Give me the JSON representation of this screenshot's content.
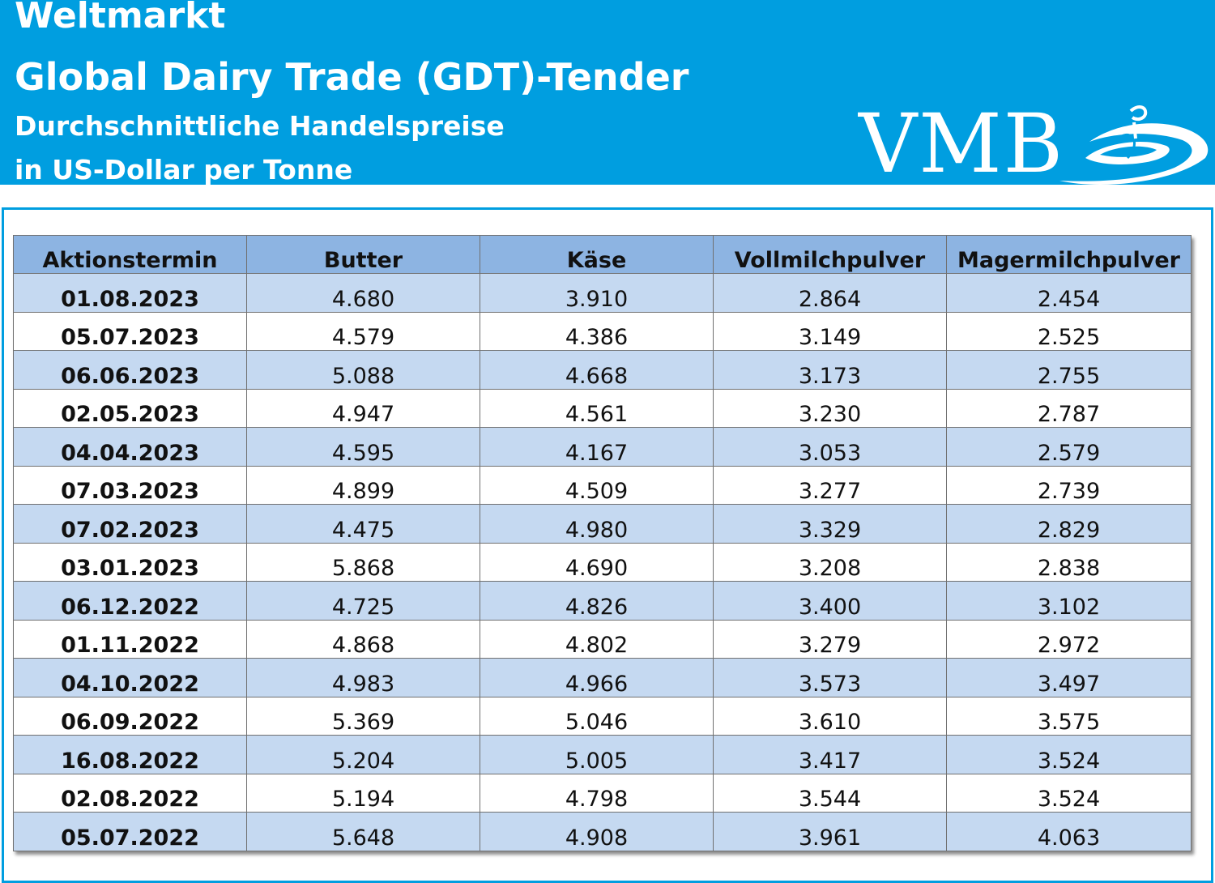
{
  "header": {
    "line1": "Weltmarkt",
    "line2": "Global Dairy Trade (GDT)-Tender",
    "line3": "Durchschnittliche Handelspreise",
    "line4": "in US-Dollar per Tonne",
    "logo_text": "VMB",
    "background_color": "#009ee0"
  },
  "table": {
    "columns": [
      "Aktionstermin",
      "Butter",
      "Käse",
      "Vollmilchpulver",
      "Magermilchpulver"
    ],
    "rows": [
      [
        "01.08.2023",
        "4.680",
        "3.910",
        "2.864",
        "2.454"
      ],
      [
        "05.07.2023",
        "4.579",
        "4.386",
        "3.149",
        "2.525"
      ],
      [
        "06.06.2023",
        "5.088",
        "4.668",
        "3.173",
        "2.755"
      ],
      [
        "02.05.2023",
        "4.947",
        "4.561",
        "3.230",
        "2.787"
      ],
      [
        "04.04.2023",
        "4.595",
        "4.167",
        "3.053",
        "2.579"
      ],
      [
        "07.03.2023",
        "4.899",
        "4.509",
        "3.277",
        "2.739"
      ],
      [
        "07.02.2023",
        "4.475",
        "4.980",
        "3.329",
        "2.829"
      ],
      [
        "03.01.2023",
        "5.868",
        "4.690",
        "3.208",
        "2.838"
      ],
      [
        "06.12.2022",
        "4.725",
        "4.826",
        "3.400",
        "3.102"
      ],
      [
        "01.11.2022",
        "4.868",
        "4.802",
        "3.279",
        "2.972"
      ],
      [
        "04.10.2022",
        "4.983",
        "4.966",
        "3.573",
        "3.497"
      ],
      [
        "06.09.2022",
        "5.369",
        "5.046",
        "3.610",
        "3.575"
      ],
      [
        "16.08.2022",
        "5.204",
        "5.005",
        "3.417",
        "3.524"
      ],
      [
        "02.08.2022",
        "5.194",
        "4.798",
        "3.544",
        "3.524"
      ],
      [
        "05.07.2022",
        "5.648",
        "4.908",
        "3.961",
        "4.063"
      ]
    ],
    "header_color": "#8db4e2",
    "stripe_color": "#c5d9f1"
  }
}
